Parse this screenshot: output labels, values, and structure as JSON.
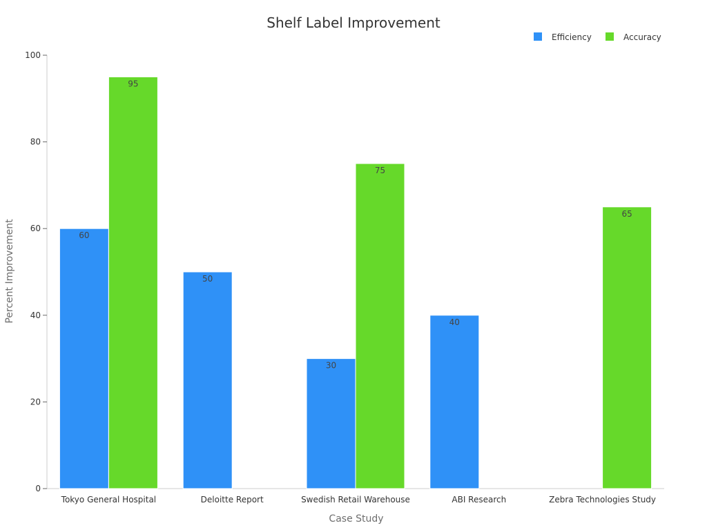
{
  "chart_data": {
    "type": "bar",
    "title": "Shelf Label Improvement",
    "xlabel": "Case Study",
    "ylabel": "Percent Improvement",
    "categories": [
      "Tokyo General Hospital",
      "Deloitte Report",
      "Swedish Retail Warehouse",
      "ABI Research",
      "Zebra Technologies Study"
    ],
    "series": [
      {
        "name": "Efficiency",
        "color": "#2f91f7",
        "values": [
          60,
          50,
          30,
          40,
          null
        ]
      },
      {
        "name": "Accuracy",
        "color": "#66d92a",
        "values": [
          95,
          null,
          75,
          null,
          65
        ]
      }
    ],
    "ylim": [
      0,
      100
    ],
    "yticks": [
      0,
      20,
      40,
      60,
      80,
      100
    ],
    "legend_position": "top-right",
    "grid": false
  }
}
